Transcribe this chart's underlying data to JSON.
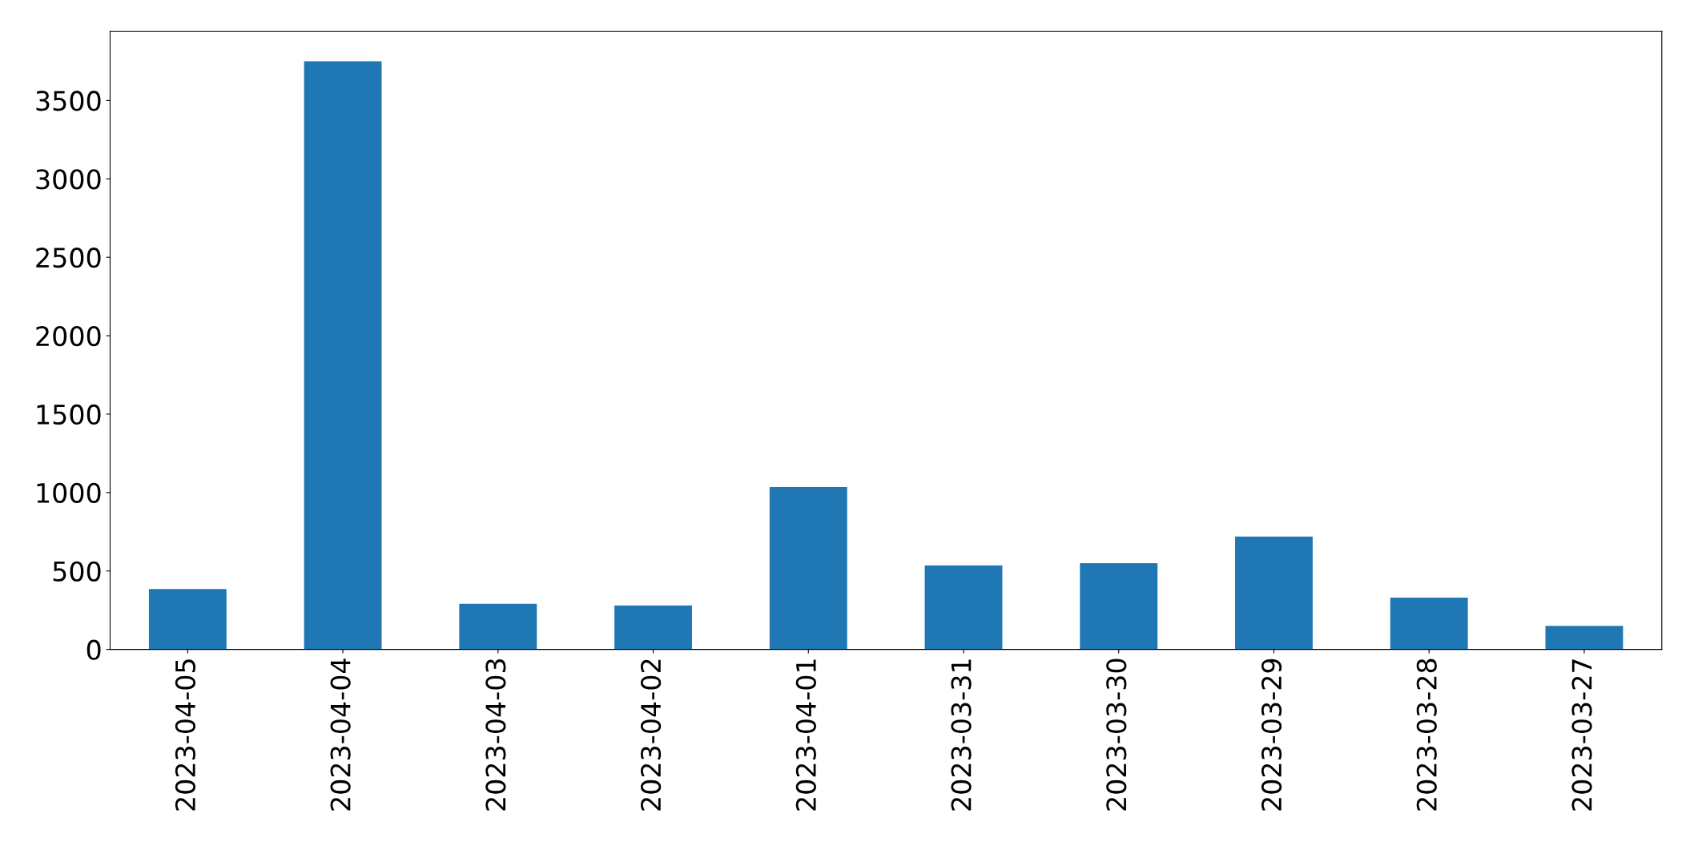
{
  "chart_data": {
    "type": "bar",
    "categories": [
      "2023-04-05",
      "2023-04-04",
      "2023-04-03",
      "2023-04-02",
      "2023-04-01",
      "2023-03-31",
      "2023-03-30",
      "2023-03-29",
      "2023-03-28",
      "2023-03-27"
    ],
    "values": [
      385,
      3750,
      290,
      280,
      1035,
      535,
      550,
      720,
      330,
      150
    ],
    "color": "#1f77b4",
    "ylim": [
      0,
      3940
    ],
    "yticks": [
      0,
      500,
      1000,
      1500,
      2000,
      2500,
      3000,
      3500
    ],
    "grid": false
  }
}
